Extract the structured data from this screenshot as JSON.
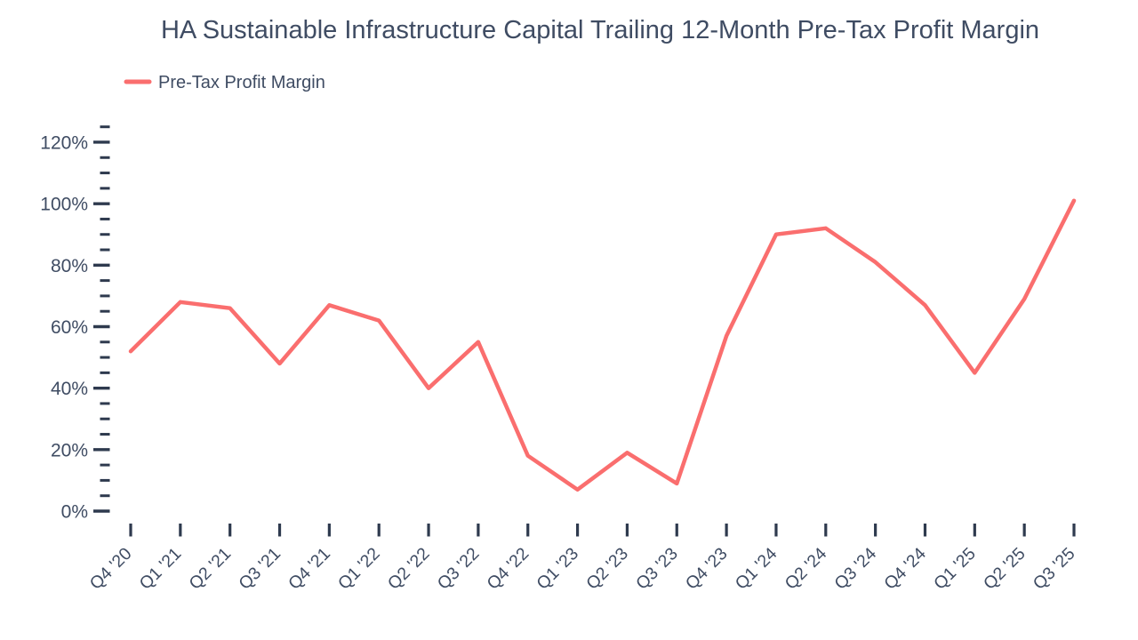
{
  "header": {
    "title": "HA Sustainable Infrastructure Capital Trailing 12-Month Pre-Tax Profit Margin"
  },
  "legend": {
    "label": "Pre-Tax Profit Margin"
  },
  "colors": {
    "line": "#fa6e6e",
    "text": "#3f4c63",
    "tick": "#2e3a4e",
    "background": "#ffffff"
  },
  "chart_data": {
    "type": "line",
    "title": "HA Sustainable Infrastructure Capital Trailing 12-Month Pre-Tax Profit Margin",
    "categories": [
      "Q4 '20",
      "Q1 '21",
      "Q2 '21",
      "Q3 '21",
      "Q4 '21",
      "Q1 '22",
      "Q2 '22",
      "Q3 '22",
      "Q4 '22",
      "Q1 '23",
      "Q2 '23",
      "Q3 '23",
      "Q4 '23",
      "Q1 '24",
      "Q2 '24",
      "Q3 '24",
      "Q4 '24",
      "Q1 '25",
      "Q2 '25",
      "Q3 '25"
    ],
    "series": [
      {
        "name": "Pre-Tax Profit Margin",
        "color": "#fa6e6e",
        "values": [
          52,
          68,
          66,
          48,
          67,
          62,
          40,
          55,
          18,
          7,
          19,
          9,
          57,
          90,
          92,
          81,
          67,
          45,
          69,
          101
        ]
      }
    ],
    "unit": "%",
    "xlabel": "",
    "ylabel": "",
    "ylim": [
      0,
      125
    ],
    "y_major_ticks": [
      0,
      20,
      40,
      60,
      80,
      100,
      120
    ],
    "y_minor_step": 5,
    "grid": false,
    "legend_position": "top-left",
    "x_label_rotation": -45
  }
}
